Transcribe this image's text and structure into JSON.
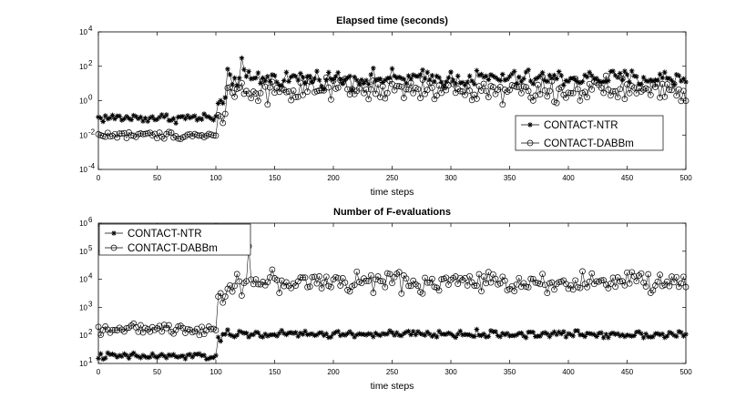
{
  "chart_data": [
    {
      "type": "line",
      "title": "Elapsed time (seconds)",
      "xlabel": "time steps",
      "ylabel": "",
      "xlim": [
        0,
        500
      ],
      "ylim": [
        0.0001,
        10000
      ],
      "yscale": "log",
      "x_ticks": [
        "0",
        "50",
        "100",
        "150",
        "200",
        "250",
        "300",
        "350",
        "400",
        "450",
        "500"
      ],
      "y_ticks": [
        {
          "base": "10",
          "exp": "-4"
        },
        {
          "base": "10",
          "exp": "-2"
        },
        {
          "base": "10",
          "exp": "0"
        },
        {
          "base": "10",
          "exp": "2"
        },
        {
          "base": "10",
          "exp": "4"
        }
      ],
      "legend_position": "right",
      "x_step": 2,
      "series": [
        {
          "name": "CONTACT-NTR",
          "marker": "star",
          "regimes": [
            {
              "x_start": 0,
              "x_end": 100,
              "median": 0.1,
              "spread": 0.25
            },
            {
              "x_start": 102,
              "x_end": 108,
              "median": 0.5,
              "spread": 0.7
            },
            {
              "x_start": 110,
              "x_end": 500,
              "median": 20,
              "spread": 0.45
            }
          ],
          "peak": {
            "x": 122,
            "y": 300
          }
        },
        {
          "name": "CONTACT-DABBm",
          "marker": "circle",
          "regimes": [
            {
              "x_start": 0,
              "x_end": 100,
              "median": 0.01,
              "spread": 0.2
            },
            {
              "x_start": 102,
              "x_end": 108,
              "median": 0.1,
              "spread": 0.6
            },
            {
              "x_start": 110,
              "x_end": 500,
              "median": 4,
              "spread": 0.6
            }
          ]
        }
      ]
    },
    {
      "type": "line",
      "title": "Number of F-evaluations",
      "xlabel": "time steps",
      "ylabel": "",
      "xlim": [
        0,
        500
      ],
      "ylim": [
        10,
        1000000
      ],
      "yscale": "log",
      "x_ticks": [
        "0",
        "50",
        "100",
        "150",
        "200",
        "250",
        "300",
        "350",
        "400",
        "450",
        "500"
      ],
      "y_ticks": [
        {
          "base": "10",
          "exp": "1"
        },
        {
          "base": "10",
          "exp": "2"
        },
        {
          "base": "10",
          "exp": "3"
        },
        {
          "base": "10",
          "exp": "4"
        },
        {
          "base": "10",
          "exp": "5"
        },
        {
          "base": "10",
          "exp": "6"
        }
      ],
      "legend_position": "top-left",
      "x_step": 2,
      "series": [
        {
          "name": "CONTACT-NTR",
          "marker": "star",
          "regimes": [
            {
              "x_start": 0,
              "x_end": 100,
              "median": 18,
              "spread": 0.12
            },
            {
              "x_start": 102,
              "x_end": 108,
              "median": 80,
              "spread": 0.3
            },
            {
              "x_start": 110,
              "x_end": 500,
              "median": 110,
              "spread": 0.12
            }
          ]
        },
        {
          "name": "CONTACT-DABBm",
          "marker": "circle",
          "regimes": [
            {
              "x_start": 0,
              "x_end": 100,
              "median": 170,
              "spread": 0.15
            },
            {
              "x_start": 102,
              "x_end": 108,
              "median": 2000,
              "spread": 0.5
            },
            {
              "x_start": 110,
              "x_end": 500,
              "median": 8000,
              "spread": 0.35
            }
          ],
          "peak": {
            "x": 128,
            "y": 150000
          }
        }
      ]
    }
  ]
}
